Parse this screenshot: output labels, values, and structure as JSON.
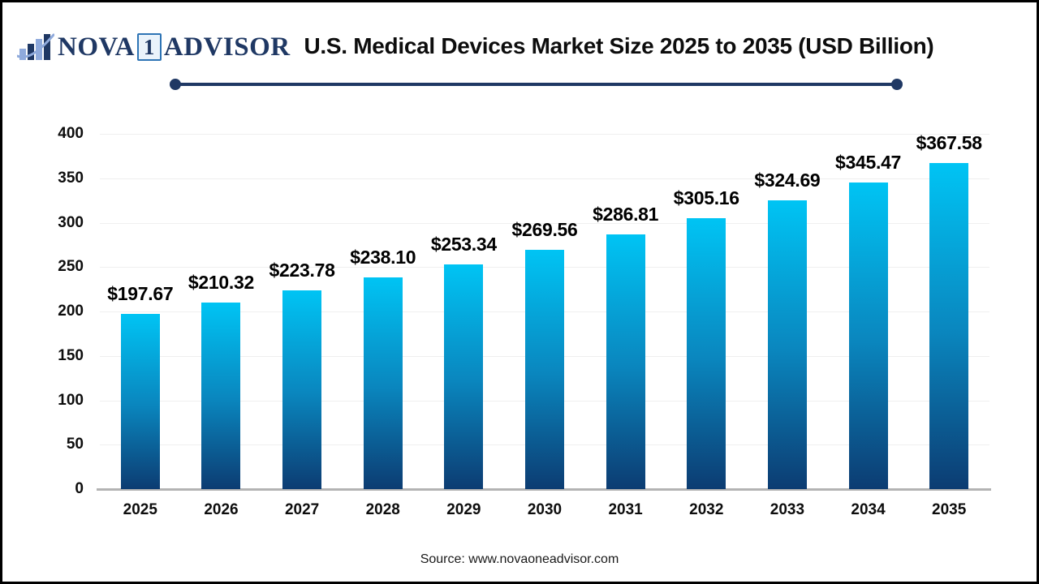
{
  "brand": {
    "name_prefix": "NOVA",
    "name_number": "1",
    "name_suffix": "ADVISOR",
    "navy": "#1F3864",
    "light_blue": "#8FAADC"
  },
  "header": {
    "title": "U.S. Medical Devices Market Size 2025 to 2035 (USD Billion)"
  },
  "footer": {
    "source": "Source: www.novaoneadvisor.com"
  },
  "chart_data": {
    "type": "bar",
    "title": "U.S. Medical Devices Market Size 2025 to 2035 (USD Billion)",
    "unit": "USD Billion",
    "categories": [
      "2025",
      "2026",
      "2027",
      "2028",
      "2029",
      "2030",
      "2031",
      "2032",
      "2033",
      "2034",
      "2035"
    ],
    "values": [
      197.67,
      210.32,
      223.78,
      238.1,
      253.34,
      269.56,
      286.81,
      305.16,
      324.69,
      345.47,
      367.58
    ],
    "bar_labels": [
      "$197.67",
      "$210.32",
      "$223.78",
      "$238.10",
      "$253.34",
      "$269.56",
      "$286.81",
      "$305.16",
      "$324.69",
      "$345.47",
      "$367.58"
    ],
    "ylim": [
      0,
      400
    ],
    "yticks": [
      0,
      50,
      100,
      150,
      200,
      250,
      300,
      350,
      400
    ],
    "grid": true,
    "legend": false,
    "colors": {
      "bar_top": "#00C4F4",
      "bar_mid": "#0A86BE",
      "bar_bottom": "#0C3C72",
      "gridline": "#EFEFEF",
      "axis_line": "#B3B3B3",
      "text": "#000000",
      "accent_navy": "#1F3864"
    }
  }
}
